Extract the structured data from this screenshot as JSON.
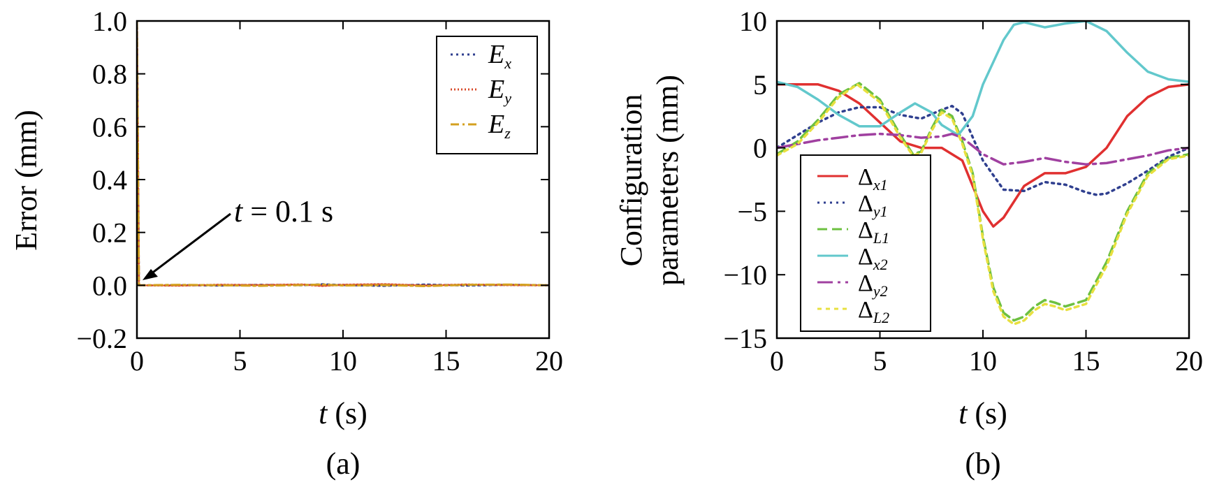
{
  "chart_data": [
    {
      "panel": "a",
      "type": "line",
      "caption": "(a)",
      "xlabel_var": "t",
      "xlabel_unit": "(s)",
      "ylabel": "Error (mm)",
      "xlim": [
        0,
        20
      ],
      "ylim": [
        -0.2,
        1.0
      ],
      "xticks": [
        "0",
        "5",
        "10",
        "15",
        "20"
      ],
      "yticks": [
        "−0.2",
        "0.0",
        "0.2",
        "0.4",
        "0.6",
        "0.8",
        "1.0"
      ],
      "ytick_values": [
        -0.2,
        0,
        0.2,
        0.4,
        0.6,
        0.8,
        1.0
      ],
      "xtick_values": [
        0,
        5,
        10,
        15,
        20
      ],
      "grid": false,
      "legend_position": "top-right",
      "annotation": {
        "var": "t",
        "text": " = 0.1 s",
        "x": 0.1,
        "y": 0.0
      },
      "series": [
        {
          "name": "E",
          "sub": "x",
          "color": "#2f3f8f",
          "dash": "3,5",
          "x": [
            0,
            0.1,
            2,
            4,
            6,
            8,
            9,
            10,
            12,
            14,
            16,
            18,
            20
          ],
          "y": [
            1.0,
            0.0,
            0.001,
            -0.001,
            0.002,
            0.0,
            0.004,
            0.001,
            -0.002,
            0.003,
            -0.001,
            0.002,
            0.0
          ]
        },
        {
          "name": "E",
          "sub": "y",
          "color": "#d84a2a",
          "dash": "2,3",
          "x": [
            0,
            0.1,
            2,
            4,
            6,
            8,
            9,
            10,
            12,
            14,
            16,
            18,
            20
          ],
          "y": [
            1.0,
            0.0,
            -0.001,
            0.002,
            0.001,
            0.003,
            -0.002,
            0.002,
            0.004,
            -0.001,
            0.003,
            0.001,
            0.0
          ]
        },
        {
          "name": "E",
          "sub": "z",
          "color": "#d4a020",
          "dash": "12,5,3,5",
          "x": [
            0,
            0.1,
            2,
            4,
            6,
            8,
            9,
            10,
            12,
            14,
            16,
            18,
            20
          ],
          "y": [
            1.0,
            0.0,
            0.002,
            0.0,
            -0.002,
            0.001,
            0.003,
            -0.001,
            0.001,
            -0.003,
            0.002,
            0.003,
            0.0
          ]
        }
      ]
    },
    {
      "panel": "b",
      "type": "line",
      "caption": "(b)",
      "xlabel_var": "t",
      "xlabel_unit": "(s)",
      "ylabel_line1": "Configuration",
      "ylabel_line2": "parameters (mm)",
      "xlim": [
        0,
        20
      ],
      "ylim": [
        -15,
        10
      ],
      "xticks": [
        "0",
        "5",
        "10",
        "15",
        "20"
      ],
      "yticks": [
        "−15",
        "−10",
        "−5",
        "0",
        "5",
        "10"
      ],
      "ytick_values": [
        -15,
        -10,
        -5,
        0,
        5,
        10
      ],
      "xtick_values": [
        0,
        5,
        10,
        15,
        20
      ],
      "grid": false,
      "legend_position": "bottom-left",
      "series": [
        {
          "name": "Δ",
          "sub": "x1",
          "color": "#e03030",
          "dash": "",
          "x": [
            0,
            2,
            3,
            4,
            5,
            6,
            7,
            8,
            9,
            10,
            10.5,
            11,
            12,
            13,
            14,
            15,
            16,
            17,
            18,
            19,
            20
          ],
          "y": [
            5,
            5,
            4.5,
            3.5,
            2,
            0.5,
            0,
            0,
            -1,
            -5,
            -6.2,
            -5.5,
            -3,
            -2,
            -2,
            -1.5,
            0,
            2.5,
            4,
            4.8,
            5
          ]
        },
        {
          "name": "Δ",
          "sub": "y1",
          "color": "#2f3f8f",
          "dash": "3,6",
          "x": [
            0,
            1,
            2,
            3,
            4,
            5,
            6,
            7,
            8,
            8.5,
            9,
            10,
            11,
            12,
            13,
            14,
            15,
            15.5,
            16,
            17,
            18,
            19,
            20
          ],
          "y": [
            0,
            1,
            2,
            2.8,
            3.2,
            3.2,
            2.6,
            2.3,
            3,
            3.3,
            2.7,
            -1,
            -3.3,
            -3.4,
            -2.7,
            -2.9,
            -3.5,
            -3.7,
            -3.6,
            -2.8,
            -1.8,
            -0.7,
            0
          ]
        },
        {
          "name": "Δ",
          "sub": "L1",
          "color": "#6dc040",
          "dash": "14,7",
          "x": [
            0,
            1,
            2,
            3,
            4,
            5,
            6,
            6.6,
            7,
            7.5,
            8,
            8.5,
            9,
            9.5,
            10,
            10.5,
            11,
            11.5,
            12,
            12.5,
            13,
            13.5,
            14,
            15,
            16,
            17,
            18,
            19,
            20
          ],
          "y": [
            -0.5,
            0.5,
            2.2,
            4.2,
            5.1,
            3.8,
            1,
            -0.5,
            -0.3,
            1.5,
            3,
            2.5,
            0.5,
            -2,
            -7,
            -11,
            -13,
            -13.6,
            -13.3,
            -12.5,
            -12,
            -12.2,
            -12.5,
            -12,
            -9,
            -5,
            -2,
            -0.8,
            -0.5
          ]
        },
        {
          "name": "Δ",
          "sub": "x2",
          "color": "#62c8cc",
          "dash": "",
          "x": [
            0,
            1,
            2,
            3,
            4,
            5,
            6,
            6.7,
            7.5,
            8,
            8.8,
            9.5,
            10,
            11,
            11.5,
            12,
            13,
            14,
            15,
            16,
            17,
            18,
            19,
            20
          ],
          "y": [
            5.2,
            4.8,
            3.8,
            2.6,
            1.7,
            1.7,
            2.8,
            3.5,
            2.8,
            1.8,
            1,
            2.5,
            5,
            8.5,
            9.7,
            9.9,
            9.5,
            9.8,
            10,
            9.2,
            7.5,
            6,
            5.4,
            5.2
          ]
        },
        {
          "name": "Δ",
          "sub": "y2",
          "color": "#a040a0",
          "dash": "22,7,4,7",
          "x": [
            0,
            1,
            2,
            3,
            4,
            5,
            6,
            7,
            8,
            8.5,
            9,
            10,
            11,
            12,
            13,
            14,
            15,
            16,
            17,
            18,
            19,
            20
          ],
          "y": [
            0,
            0.3,
            0.6,
            0.8,
            1,
            1.1,
            1,
            0.8,
            0.9,
            1.1,
            0.8,
            -0.5,
            -1.3,
            -1.1,
            -0.8,
            -1.1,
            -1.3,
            -1.2,
            -0.9,
            -0.6,
            -0.2,
            0
          ]
        },
        {
          "name": "Δ",
          "sub": "L2",
          "color": "#e8e040",
          "dash": "6,6",
          "x": [
            0,
            1,
            2,
            3,
            3.9,
            5,
            6,
            6.6,
            7,
            7.5,
            8,
            8.5,
            9,
            9.5,
            10,
            10.5,
            11,
            11.5,
            12,
            12.5,
            13,
            13.5,
            14,
            15,
            16,
            17,
            18,
            19,
            20
          ],
          "y": [
            -0.6,
            0.3,
            2,
            4,
            5,
            3.6,
            0.8,
            -0.6,
            -0.4,
            1.3,
            2.8,
            2.3,
            0.3,
            -2.2,
            -7.2,
            -11.3,
            -13.3,
            -13.9,
            -13.6,
            -12.8,
            -12.3,
            -12.5,
            -12.8,
            -12.3,
            -9.3,
            -5.2,
            -2.2,
            -0.9,
            -0.6
          ]
        }
      ]
    }
  ]
}
